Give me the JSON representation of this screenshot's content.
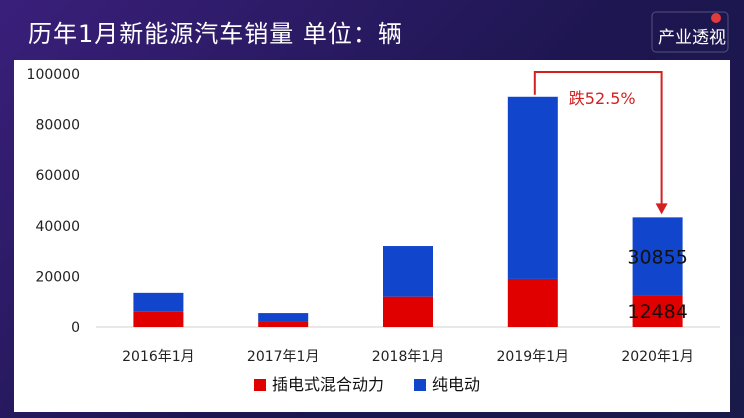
{
  "header": {
    "title": "历年1月新能源汽车销量  单位：辆",
    "logo_text": "产业透视"
  },
  "colors": {
    "phev": "#E00000",
    "bev": "#1045CC",
    "annotation": "#D42020",
    "axis_text": "#222222"
  },
  "chart_data": {
    "type": "bar",
    "stacked": true,
    "categories": [
      "2016年1月",
      "2017年1月",
      "2018年1月",
      "2019年1月",
      "2020年1月"
    ],
    "series": [
      {
        "name": "插电式混合动力",
        "values": [
          6000,
          2000,
          12000,
          19000,
          12484
        ]
      },
      {
        "name": "纯电动",
        "values": [
          7500,
          3500,
          20000,
          72000,
          30855
        ]
      }
    ],
    "ylim": [
      0,
      100000
    ],
    "yticks": [
      0,
      20000,
      40000,
      60000,
      80000,
      100000
    ],
    "data_labels": [
      {
        "category": "2020年1月",
        "series": "插电式混合动力",
        "text": "12484"
      },
      {
        "category": "2020年1月",
        "series": "纯电动",
        "text": "30855"
      }
    ],
    "annotation": {
      "text": "跌52.5%",
      "from": "2019年1月",
      "to": "2020年1月"
    },
    "legend": "bottom",
    "xlabel": "",
    "ylabel": ""
  }
}
